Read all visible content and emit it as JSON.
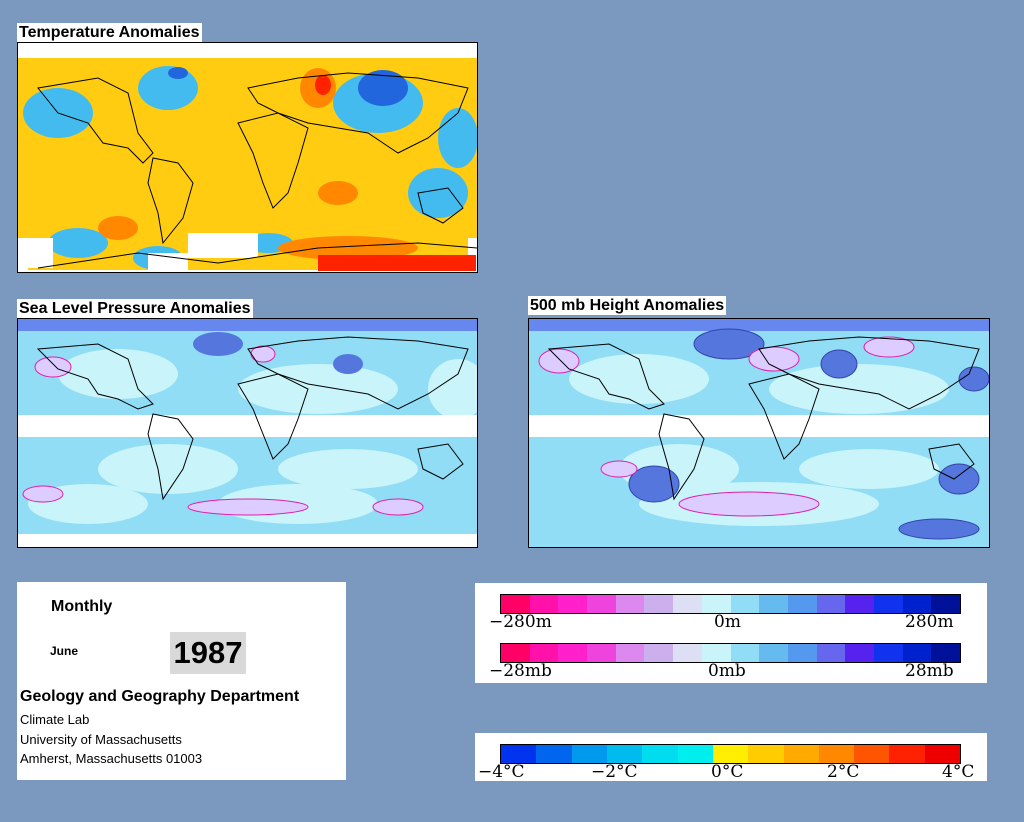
{
  "panels": {
    "temperature": {
      "title": "Temperature Anomalies"
    },
    "slp": {
      "title": "Sea Level Pressure Anomalies"
    },
    "height500": {
      "title": "500 mb Height Anomalies"
    }
  },
  "info": {
    "period": "Monthly",
    "month": "June",
    "year": "1987",
    "department": "Geology and Geography Department",
    "lines": [
      "Climate Lab",
      "University of Massachusetts",
      "Amherst, Massachusetts 01003"
    ]
  },
  "legends": {
    "height": {
      "labels": [
        "−280m",
        "0m",
        "280m"
      ]
    },
    "pressure": {
      "labels": [
        "−28mb",
        "0mb",
        "28mb"
      ]
    },
    "temperature": {
      "labels": [
        "−4°C",
        "−2°C",
        "0°C",
        "2°C",
        "4°C"
      ]
    }
  },
  "colors": {
    "background": "#7b98be",
    "anomaly_scale": [
      "#ff0066",
      "#ff11aa",
      "#ff22cc",
      "#ee44dd",
      "#dd88ee",
      "#ccb0ee",
      "#dde0f5",
      "#c8f4fa",
      "#90ddf5",
      "#66bbee",
      "#5599ee",
      "#6666ee",
      "#5522ee",
      "#1133ee",
      "#0022cc",
      "#001199"
    ],
    "temperature_scale": [
      "#0033ee",
      "#0066ee",
      "#0099ee",
      "#00bbee",
      "#00ddee",
      "#00eeee",
      "#ffee00",
      "#ffcc00",
      "#ffaa00",
      "#ff8800",
      "#ff5500",
      "#ff2200",
      "#ee0000"
    ]
  }
}
